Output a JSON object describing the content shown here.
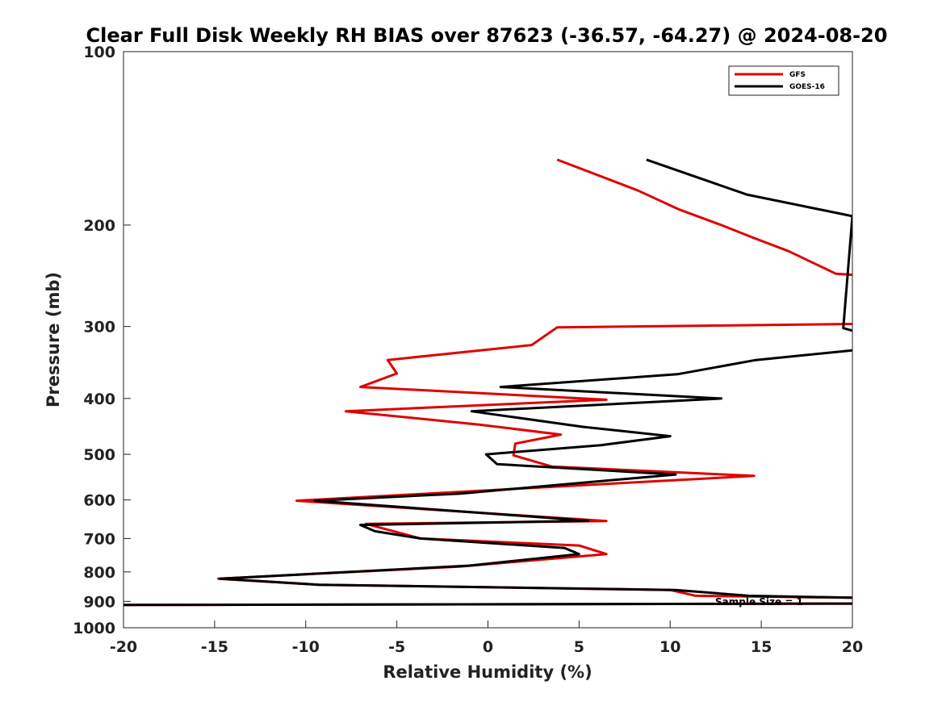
{
  "chart_data": {
    "type": "line",
    "title": "Clear Full Disk Weekly RH BIAS over 87623 (-36.57, -64.27) @ 2024-08-20",
    "xlabel": "Relative Humidity (%)",
    "ylabel": "Pressure (mb)",
    "xlim": [
      -20,
      20
    ],
    "ylim": [
      100,
      1000
    ],
    "y_scale": "log",
    "y_reversed": true,
    "grid": false,
    "legend_position": "top-right",
    "x_ticks": [
      "-20",
      "-15",
      "-10",
      "-5",
      "0",
      "5",
      "10",
      "15",
      "20"
    ],
    "y_ticks": [
      "100",
      "200",
      "300",
      "400",
      "500",
      "600",
      "700",
      "800",
      "900",
      "1000"
    ],
    "annotation": "Sample Size = 1",
    "series": [
      {
        "name": "GFS",
        "color": "#e00000",
        "points": [
          [
            3.8,
            154
          ],
          [
            8.2,
            174
          ],
          [
            10.5,
            188
          ],
          [
            12.8,
            200
          ],
          [
            14.5,
            210
          ],
          [
            16.5,
            222
          ],
          [
            19.1,
            243
          ],
          [
            20.0,
            244
          ],
          [
            20.0,
            297
          ],
          [
            12.0,
            299
          ],
          [
            3.8,
            301
          ],
          [
            2.4,
            323
          ],
          [
            -5.5,
            343
          ],
          [
            -5.0,
            362
          ],
          [
            -7.0,
            382
          ],
          [
            6.5,
            402
          ],
          [
            -7.8,
            421
          ],
          [
            -0.5,
            444
          ],
          [
            4.0,
            462
          ],
          [
            1.5,
            479
          ],
          [
            1.4,
            502
          ],
          [
            3.5,
            525
          ],
          [
            14.6,
            545
          ],
          [
            -10.5,
            602
          ],
          [
            6.5,
            653
          ],
          [
            -6.7,
            660
          ],
          [
            -3.7,
            700
          ],
          [
            5.0,
            720
          ],
          [
            6.5,
            745
          ],
          [
            -1.5,
            783
          ],
          [
            -14.8,
            822
          ],
          [
            -9.3,
            842
          ],
          [
            10.0,
            860
          ],
          [
            11.4,
            880
          ],
          [
            20.0,
            887
          ],
          [
            20.0,
            908
          ],
          [
            -20.0,
            913
          ]
        ]
      },
      {
        "name": "GOES-16",
        "color": "#000000",
        "points": [
          [
            8.7,
            154
          ],
          [
            14.2,
            177
          ],
          [
            20.0,
            193
          ],
          [
            19.5,
            302
          ],
          [
            20.0,
            305
          ],
          [
            20.0,
            330
          ],
          [
            14.7,
            343
          ],
          [
            10.4,
            363
          ],
          [
            0.7,
            382
          ],
          [
            12.8,
            400
          ],
          [
            -0.9,
            421
          ],
          [
            5.2,
            448
          ],
          [
            10.0,
            465
          ],
          [
            6.2,
            482
          ],
          [
            -0.1,
            500
          ],
          [
            0.5,
            520
          ],
          [
            10.3,
            542
          ],
          [
            -1.5,
            585
          ],
          [
            -9.5,
            602
          ],
          [
            5.5,
            652
          ],
          [
            -7.0,
            663
          ],
          [
            -6.2,
            680
          ],
          [
            -3.7,
            700
          ],
          [
            4.2,
            727
          ],
          [
            5.0,
            745
          ],
          [
            -1.0,
            780
          ],
          [
            -14.7,
            822
          ],
          [
            -9.3,
            842
          ],
          [
            10.3,
            860
          ],
          [
            14.3,
            880
          ],
          [
            20.0,
            887
          ],
          [
            20.0,
            908
          ],
          [
            -20.0,
            913
          ]
        ]
      }
    ]
  }
}
